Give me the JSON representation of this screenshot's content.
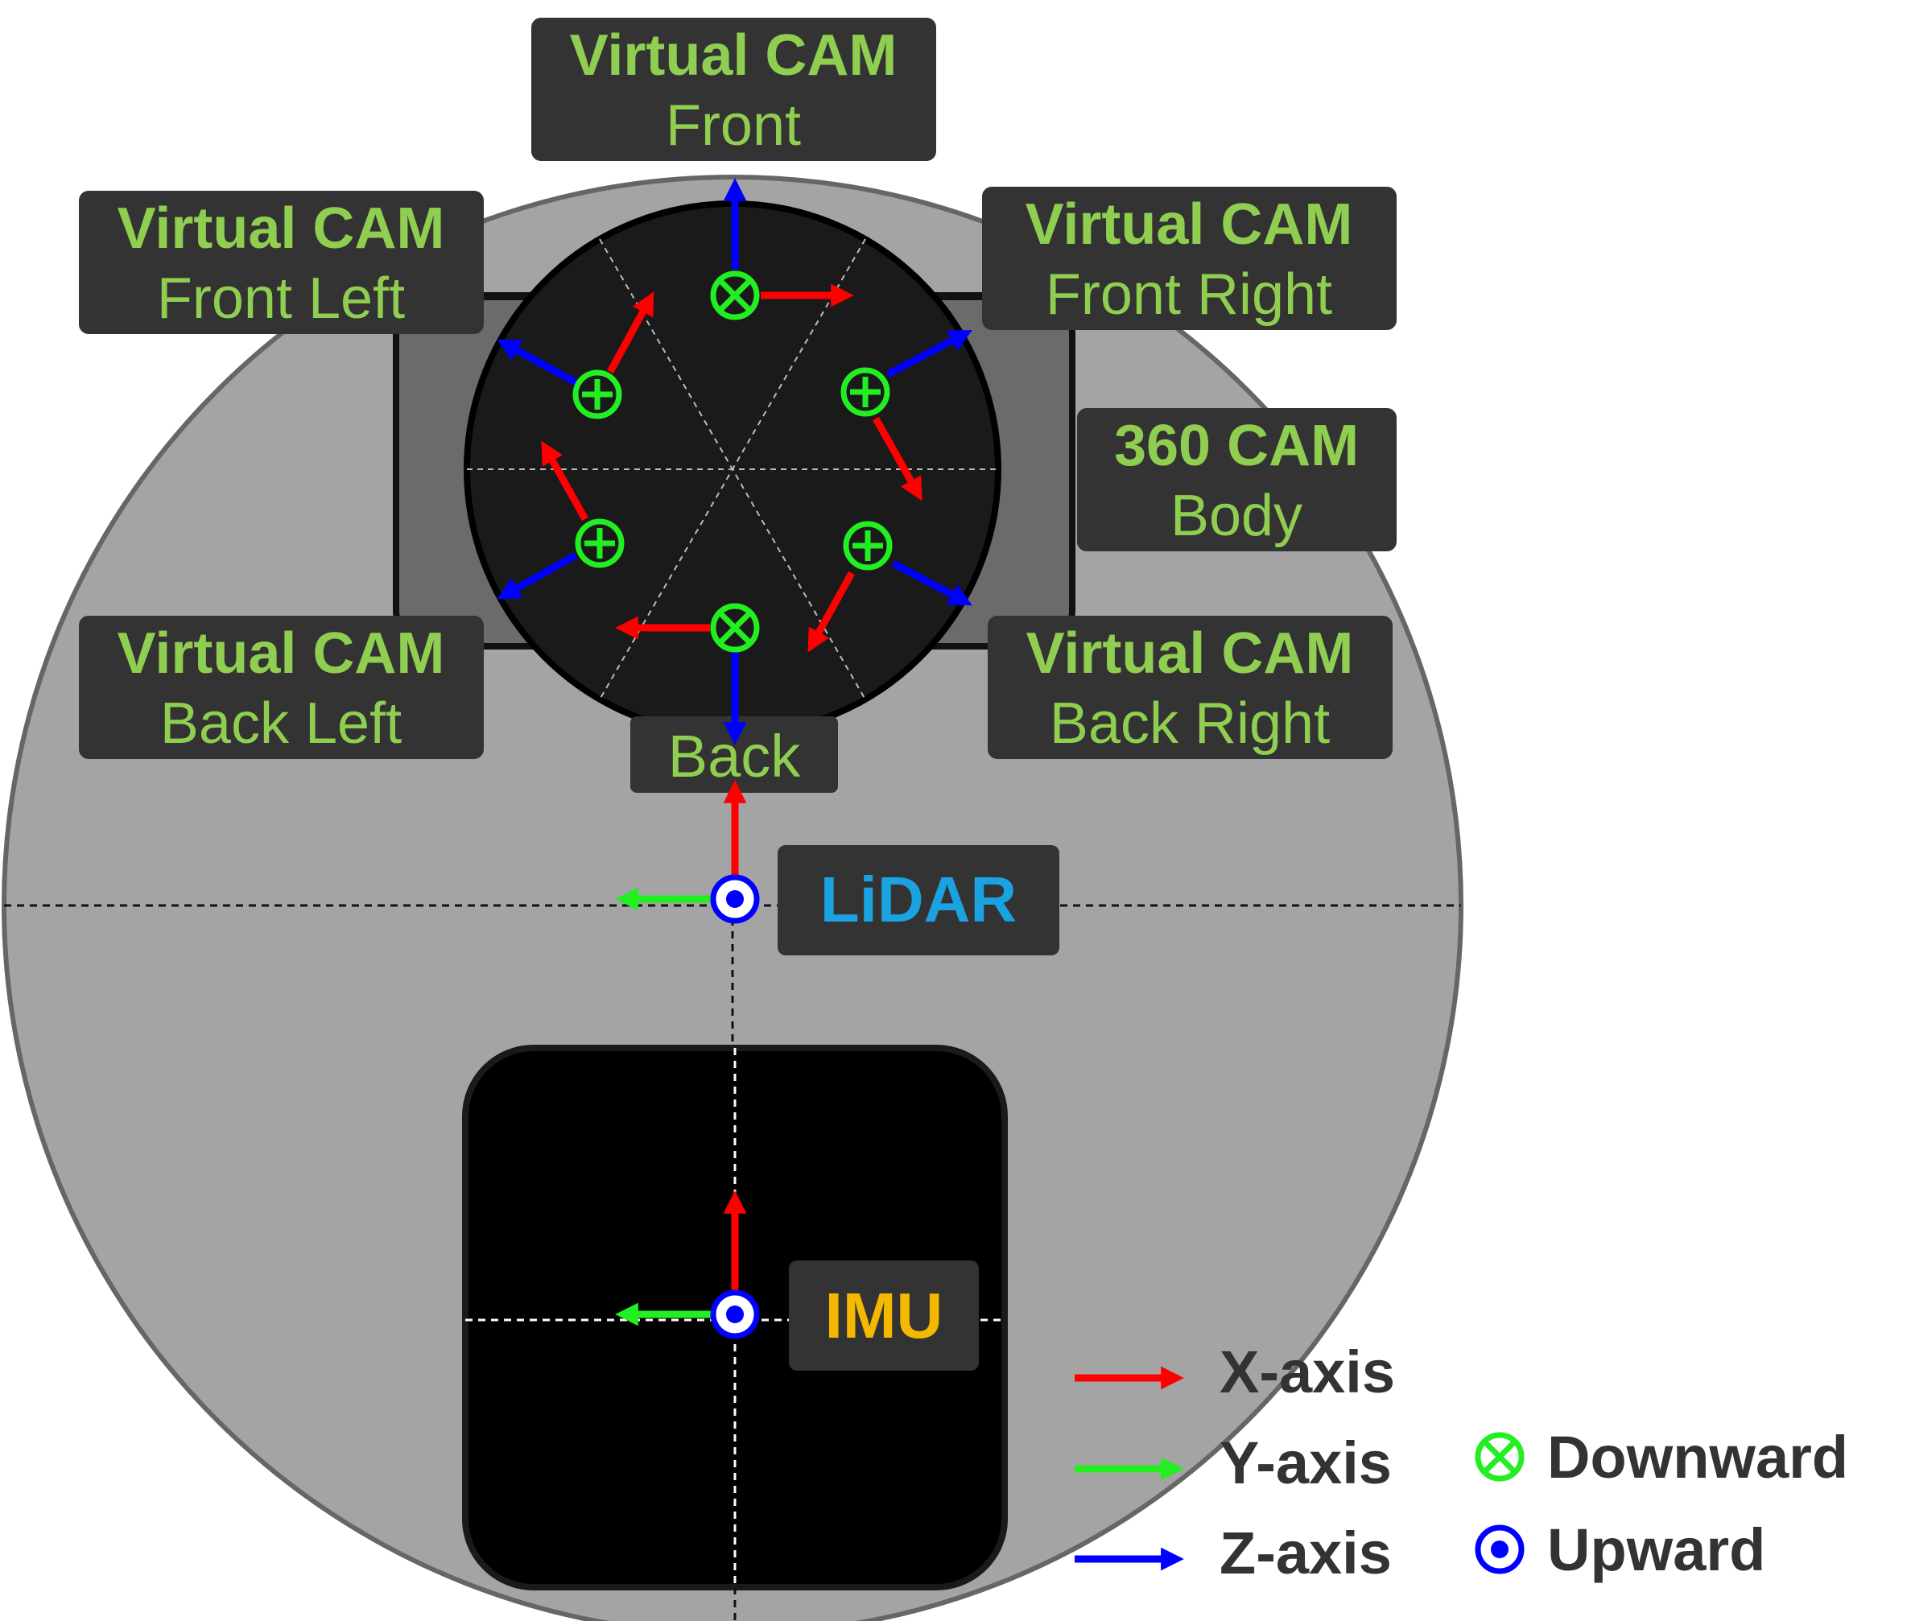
{
  "colors": {
    "x_axis": "#ff0000",
    "y_axis": "#22ee22",
    "z_axis": "#0000ff",
    "label_green": "#8fce50",
    "lidar_text": "#1aa3e0",
    "imu_text": "#f5b800",
    "label_box": "#333333",
    "base_fill": "#a4a4a4",
    "legend_text": "#333333"
  },
  "cameras": {
    "front": {
      "title": "Virtual CAM",
      "name": "Front"
    },
    "front_left": {
      "title": "Virtual CAM",
      "name": "Front Left"
    },
    "front_right": {
      "title": "Virtual CAM",
      "name": "Front Right"
    },
    "back_left": {
      "title": "Virtual CAM",
      "name": "Back Left"
    },
    "back_right": {
      "title": "Virtual CAM",
      "name": "Back Right"
    },
    "back": {
      "name": "Back"
    }
  },
  "body_cam": {
    "title": "360 CAM",
    "name": "Body"
  },
  "lidar": {
    "label": "LiDAR"
  },
  "imu": {
    "label": "IMU"
  },
  "legend": {
    "x_axis": "X-axis",
    "y_axis": "Y-axis",
    "z_axis": "Z-axis",
    "downward": "Downward",
    "upward": "Upward"
  }
}
